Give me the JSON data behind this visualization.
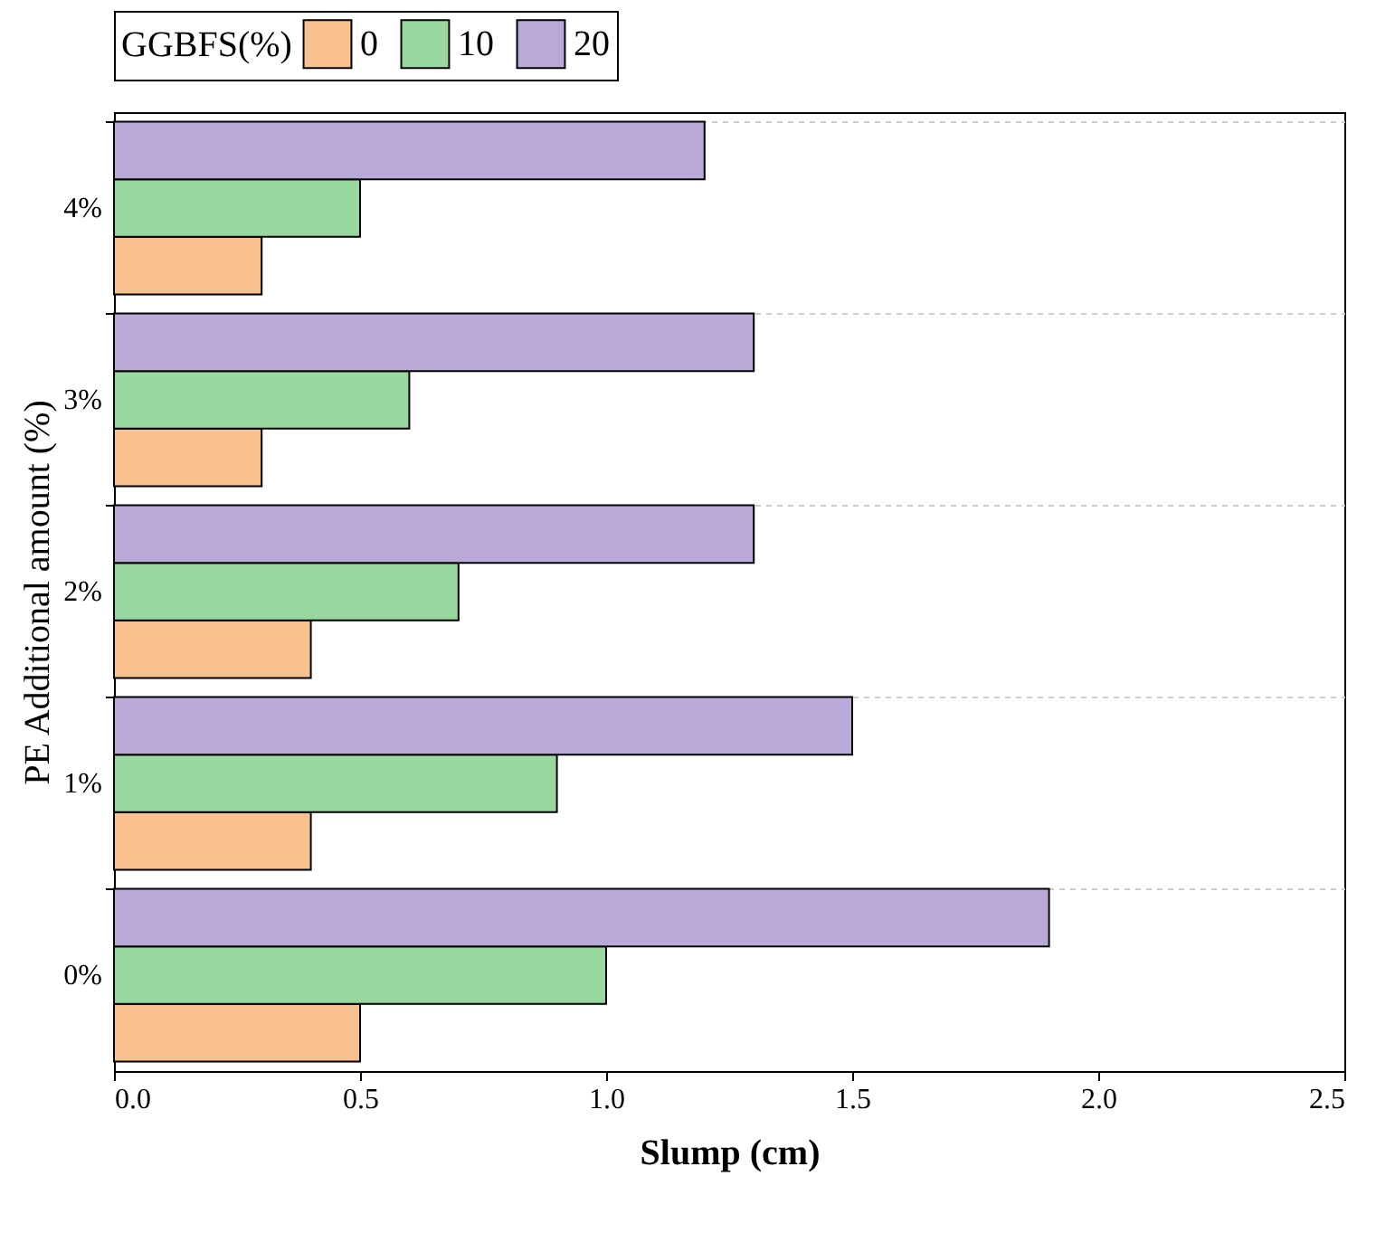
{
  "chart_data": {
    "type": "bar",
    "orientation": "horizontal",
    "xlabel": "Slump (cm)",
    "ylabel": "PE Additional amount (%)",
    "legend_title": "GGBFS(%)",
    "legend": "top",
    "categories": [
      "4%",
      "3%",
      "2%",
      "1%",
      "0%"
    ],
    "series": [
      {
        "name": "0",
        "color": "#f9c08f",
        "values": [
          0.3,
          0.3,
          0.4,
          0.4,
          0.5
        ]
      },
      {
        "name": "10",
        "color": "#98d8a0",
        "values": [
          0.5,
          0.6,
          0.7,
          0.9,
          1.0
        ]
      },
      {
        "name": "20",
        "color": "#b9a9d9",
        "values": [
          1.2,
          1.3,
          1.3,
          1.5,
          1.9
        ]
      }
    ],
    "xlim": [
      0,
      2.5
    ],
    "xticks": [
      {
        "value": 0,
        "label": "0.0"
      },
      {
        "value": 0.5,
        "label": "0.5"
      },
      {
        "value": 1,
        "label": "1.0"
      },
      {
        "value": 1.5,
        "label": "1.5"
      },
      {
        "value": 2,
        "label": "2.0"
      },
      {
        "value": 2.5,
        "label": "2.5"
      }
    ],
    "grid": "y"
  }
}
